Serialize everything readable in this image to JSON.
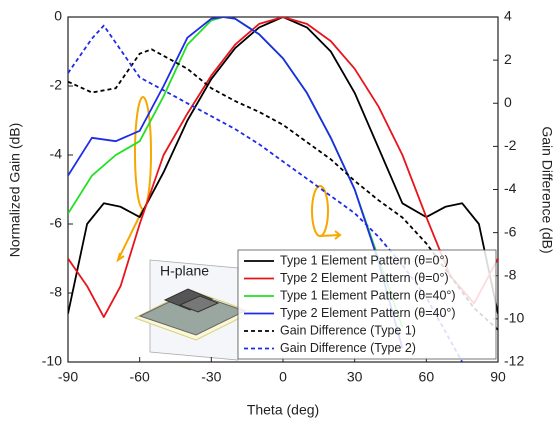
{
  "chart_data": {
    "type": "line",
    "x_label": "Theta (deg)",
    "y_label": "Normalized Gain (dB)",
    "y2_label": "Gain Difference (dB)",
    "annotation": "H-plane",
    "xlim": [
      -90,
      90
    ],
    "xticks": [
      -90,
      -60,
      -30,
      0,
      30,
      60,
      90
    ],
    "ylim": [
      -10,
      0
    ],
    "yticks": [
      0,
      -2,
      -4,
      -6,
      -8,
      -10
    ],
    "y2lim": [
      -12,
      4
    ],
    "y2ticks": [
      4,
      2,
      0,
      -2,
      -4,
      -6,
      -8,
      -10,
      -12
    ],
    "legend": "lower right",
    "series": [
      {
        "name": "Type 1 Element Pattern (θ=0°)",
        "color": "#000000",
        "dash": false,
        "x": [
          -90,
          -82,
          -75,
          -68,
          -60,
          -50,
          -40,
          -30,
          -20,
          -10,
          0,
          10,
          20,
          30,
          40,
          50,
          60,
          68,
          75,
          82,
          90
        ],
        "values": [
          -8.6,
          -6,
          -5.4,
          -5.5,
          -5.8,
          -4.5,
          -3,
          -1.8,
          -0.9,
          -0.3,
          0,
          -0.3,
          -1,
          -2.2,
          -3.8,
          -5.4,
          -5.8,
          -5.5,
          -5.4,
          -6,
          -8.6
        ]
      },
      {
        "name": "Type 2 Element Pattern (θ=0°)",
        "color": "#e8141b",
        "dash": false,
        "x": [
          -90,
          -82,
          -75,
          -68,
          -60,
          -50,
          -40,
          -30,
          -20,
          -10,
          0,
          10,
          20,
          30,
          40,
          50,
          60,
          70,
          80,
          90
        ],
        "values": [
          -7,
          -7.8,
          -8.7,
          -7.8,
          -6,
          -4,
          -2.8,
          -1.7,
          -0.8,
          -0.2,
          0,
          -0.2,
          -0.7,
          -1.5,
          -2.6,
          -4,
          -5.8,
          -7.5,
          -8.3,
          -7
        ]
      },
      {
        "name": "Type 1 Element Pattern (θ=40°)",
        "color": "#22e022",
        "dash": false,
        "x": [
          -90,
          -80,
          -70,
          -60,
          -50,
          -40,
          -30,
          -25,
          -20,
          -10,
          0,
          10,
          20,
          30,
          40,
          50
        ],
        "values": [
          -5.7,
          -4.6,
          -4,
          -3.6,
          -2.3,
          -0.8,
          -0.1,
          0,
          -0.05,
          -0.5,
          -1.2,
          -2.2,
          -3.5,
          -5,
          -7,
          -9
        ]
      },
      {
        "name": "Type 2 Element Pattern (θ=40°)",
        "color": "#1f2be8",
        "dash": false,
        "x": [
          -90,
          -80,
          -70,
          -60,
          -50,
          -40,
          -30,
          -25,
          -20,
          -10,
          0,
          10,
          20,
          30,
          40,
          50
        ],
        "values": [
          -4.6,
          -3.5,
          -3.6,
          -3.3,
          -2,
          -0.6,
          -0.05,
          0,
          -0.05,
          -0.5,
          -1.2,
          -2.2,
          -3.5,
          -5,
          -7.1,
          -9.6
        ]
      },
      {
        "name": "Gain Difference (Type 1)",
        "color": "#000000",
        "dash": true,
        "axis": "y2",
        "x": [
          -90,
          -80,
          -70,
          -60,
          -55,
          -40,
          -30,
          -20,
          -10,
          0,
          10,
          20,
          30,
          40,
          50,
          60,
          70,
          80,
          90
        ],
        "values": [
          1,
          0.5,
          0.7,
          2.3,
          2.5,
          1.6,
          0.7,
          0.1,
          -0.4,
          -1,
          -1.8,
          -2.6,
          -3.6,
          -4.5,
          -5.3,
          -6.5,
          -8,
          -9.5,
          -10.5
        ]
      },
      {
        "name": "Gain Difference (Type 2)",
        "color": "#1f2be8",
        "dash": true,
        "axis": "y2",
        "x": [
          -90,
          -80,
          -75,
          -70,
          -60,
          -50,
          -40,
          -30,
          -20,
          -10,
          0,
          10,
          20,
          30,
          40,
          50,
          60,
          70,
          75
        ],
        "values": [
          1.4,
          3,
          3.6,
          2.8,
          1.2,
          0.6,
          0,
          -0.6,
          -1.2,
          -1.9,
          -2.7,
          -3.5,
          -4.3,
          -5.1,
          -6.2,
          -7.5,
          -9,
          -11,
          -12
        ]
      }
    ]
  }
}
